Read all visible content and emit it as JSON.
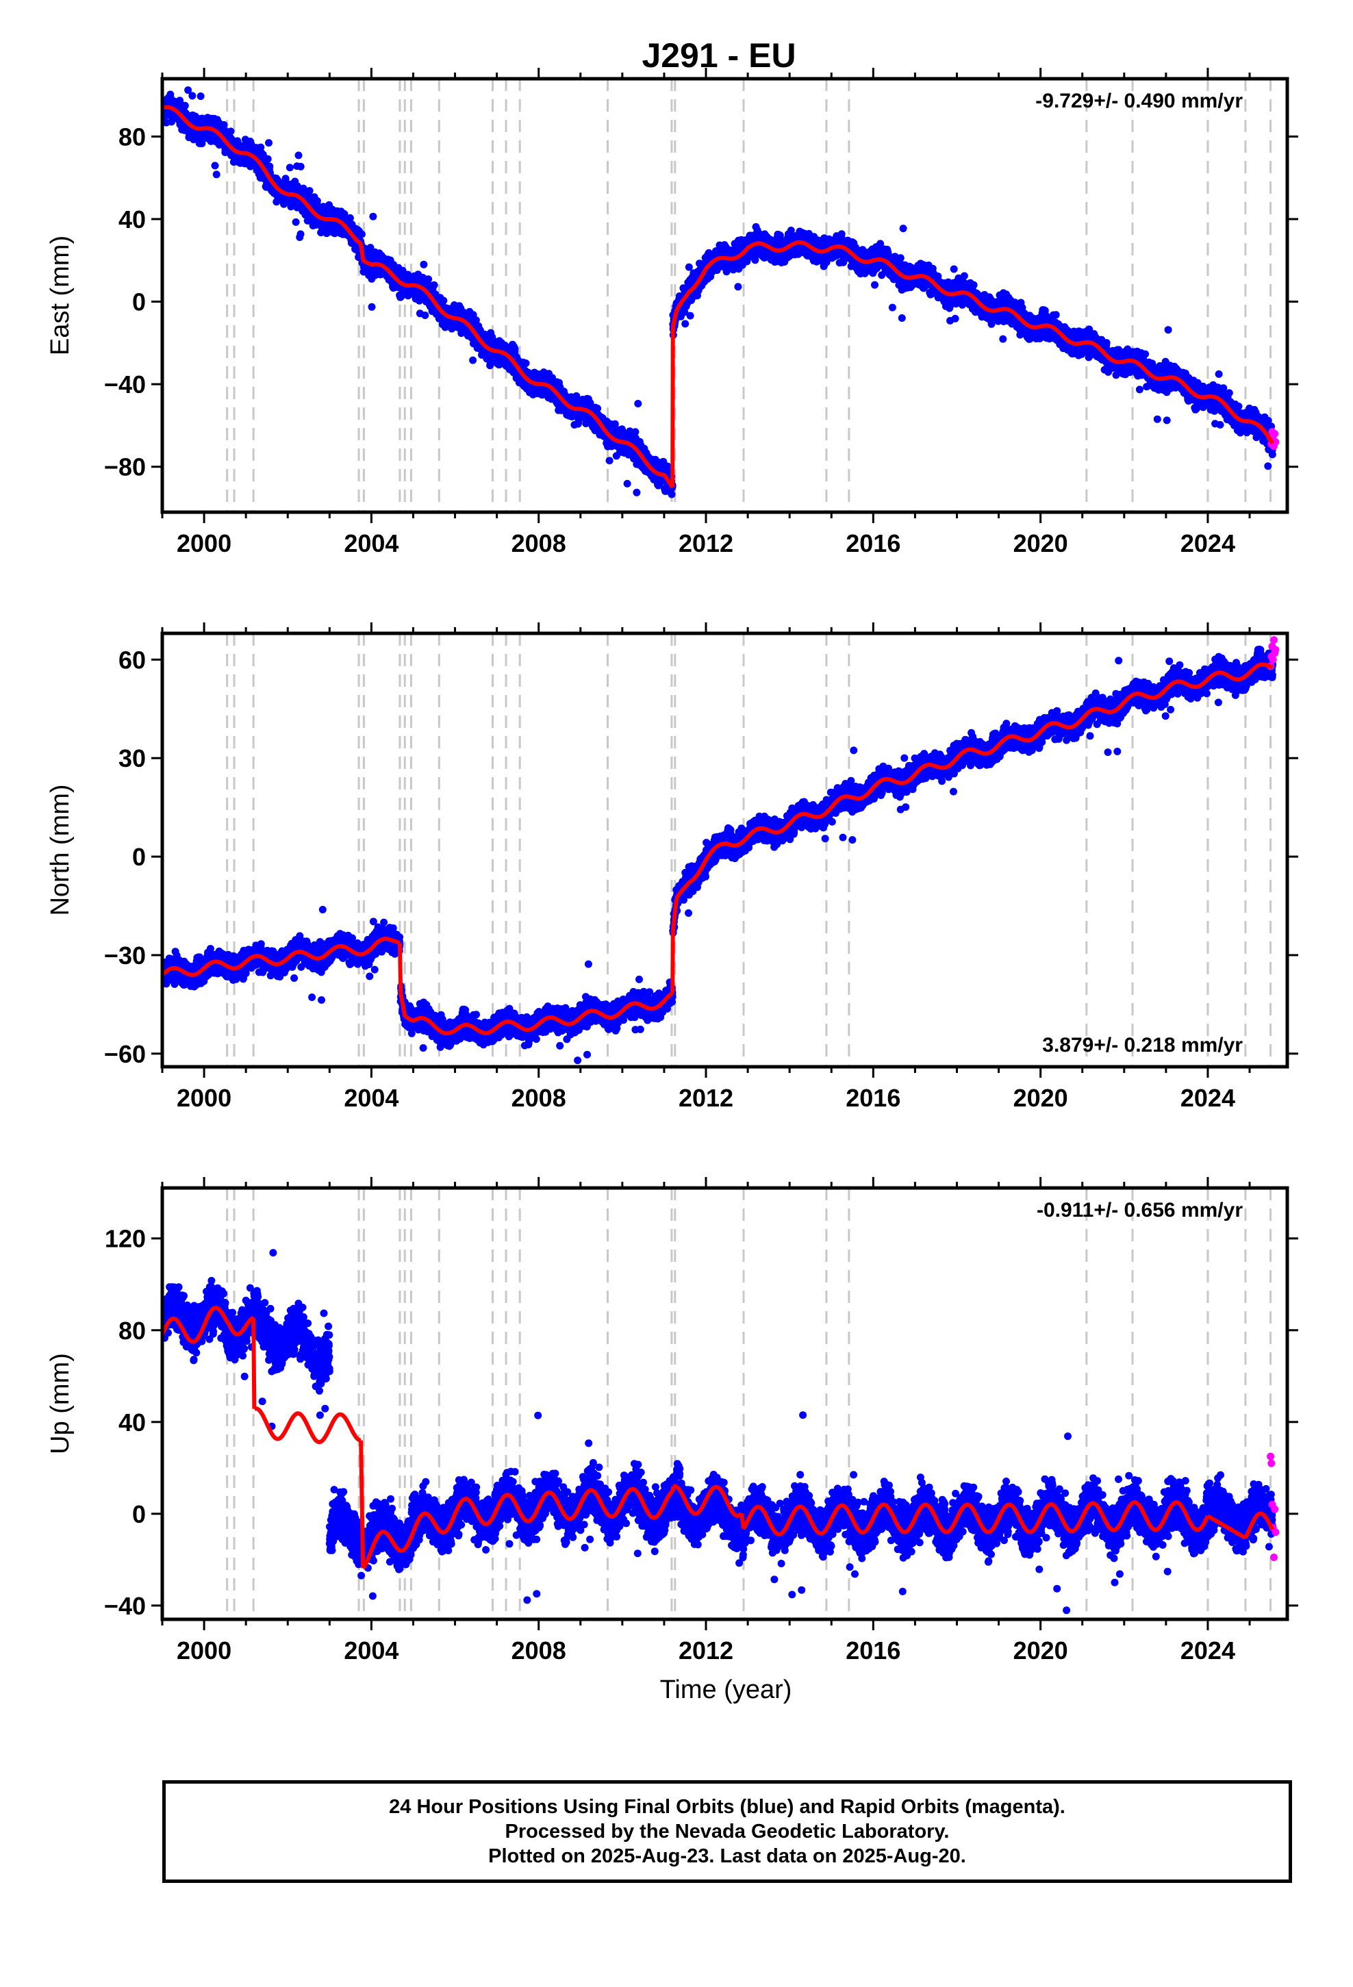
{
  "title": "J291 - EU",
  "xlabel": "Time (year)",
  "x_ticks": [
    2000,
    2004,
    2008,
    2012,
    2016,
    2020,
    2024
  ],
  "x_range": [
    1999.0,
    2025.9
  ],
  "colors": {
    "final_orbits": "#0000ff",
    "rapid_orbits": "#ff00ff",
    "model": "#ff0000",
    "events": "#c8c8c8",
    "frame": "#000000"
  },
  "chart_data": [
    {
      "type": "scatter",
      "component": "east",
      "ylabel": "East (mm)",
      "ylim": [
        -102,
        108
      ],
      "y_ticks": [
        -80,
        -40,
        0,
        40,
        80
      ],
      "rate_label": "-9.729+/- 0.490 mm/yr",
      "rate_position": "top-right",
      "event_lines": [
        2000.55,
        2000.72,
        2001.18,
        2003.7,
        2003.82,
        2004.68,
        2004.8,
        2004.95,
        2005.62,
        2006.9,
        2007.22,
        2007.55,
        2009.65,
        2011.18,
        2011.26,
        2012.9,
        2014.88,
        2015.42,
        2021.1,
        2022.2,
        2024.0,
        2024.9,
        2025.5
      ],
      "series": [
        {
          "name": "Final Orbits",
          "segments": [
            {
              "x": [
                1999.0,
                2000.0,
                2001.0,
                2002.0,
                2003.0,
                2003.75,
                2003.8,
                2004.0,
                2005.0,
                2006.0,
                2007.0,
                2008.0,
                2009.0,
                2010.0,
                2011.0,
                2011.2
              ],
              "y": [
                94,
                84,
                72,
                52,
                40,
                30,
                22,
                18,
                8,
                -8,
                -24,
                -40,
                -52,
                -68,
                -84,
                -92
              ]
            },
            {
              "x": [
                2011.21,
                2011.3,
                2011.6,
                2012.0,
                2012.5,
                2013.0,
                2014.0,
                2015.0,
                2016.0,
                2017.0,
                2018.0,
                2019.0,
                2020.0,
                2021.0,
                2022.0,
                2023.0,
                2024.0,
                2025.0,
                2025.55
              ],
              "y": [
                -14,
                -6,
                6,
                16,
                21,
                26,
                27,
                26,
                20,
                12,
                4,
                -4,
                -12,
                -20,
                -29,
                -37,
                -46,
                -58,
                -68
              ]
            }
          ],
          "scatter_sd": 4
        },
        {
          "name": "Rapid Orbits",
          "x": [
            2025.5,
            2025.52,
            2025.54,
            2025.56,
            2025.58,
            2025.6,
            2025.62
          ],
          "y": [
            -66,
            -69,
            -63,
            -67,
            -70,
            -64,
            -68
          ]
        }
      ],
      "model_segments": [
        {
          "x": [
            1999.0,
            2000.0,
            2001.0,
            2002.0,
            2003.0,
            2003.75,
            2003.8,
            2004.0,
            2005.0,
            2006.0,
            2007.0,
            2008.0,
            2009.0,
            2010.0,
            2011.0,
            2011.2
          ],
          "y": [
            94,
            84,
            72,
            52,
            40,
            30,
            22,
            18,
            8,
            -8,
            -24,
            -40,
            -52,
            -68,
            -84,
            -92
          ]
        },
        {
          "x": [
            2011.21,
            2011.3,
            2011.6,
            2012.0,
            2012.5,
            2013.0,
            2014.0,
            2015.0,
            2016.0,
            2017.0,
            2018.0,
            2019.0,
            2020.0,
            2021.0,
            2022.0,
            2023.0,
            2024.0,
            2025.0,
            2025.55
          ],
          "y": [
            -14,
            -6,
            6,
            16,
            21,
            26,
            27,
            26,
            20,
            12,
            4,
            -4,
            -12,
            -20,
            -29,
            -37,
            -46,
            -58,
            -68
          ]
        }
      ],
      "seasonal_amplitude": 2
    },
    {
      "type": "scatter",
      "component": "north",
      "ylabel": "North (mm)",
      "ylim": [
        -64,
        68
      ],
      "y_ticks": [
        -60,
        -30,
        0,
        30,
        60
      ],
      "rate_label": "3.879+/- 0.218 mm/yr",
      "rate_position": "bottom-right",
      "event_lines": [
        2000.55,
        2000.72,
        2001.18,
        2003.7,
        2003.82,
        2004.68,
        2004.8,
        2004.95,
        2005.62,
        2006.9,
        2007.22,
        2007.55,
        2009.65,
        2011.18,
        2011.26,
        2012.9,
        2014.88,
        2015.42,
        2021.1,
        2022.2,
        2024.0,
        2024.9,
        2025.5
      ],
      "series": [
        {
          "name": "Final Orbits",
          "segments": [
            {
              "x": [
                1999.0,
                2000.0,
                2001.0,
                2002.0,
                2003.0,
                2004.0,
                2004.6,
                2004.68
              ],
              "y": [
                -36,
                -34,
                -32,
                -31,
                -29,
                -28,
                -25,
                -25
              ]
            },
            {
              "x": [
                2004.7,
                2004.8,
                2005.0,
                2006.0,
                2007.0,
                2008.0,
                2009.0,
                2010.0,
                2011.0,
                2011.2
              ],
              "y": [
                -40,
                -47,
                -50,
                -53,
                -52,
                -51,
                -49,
                -47,
                -44,
                -43
              ]
            },
            {
              "x": [
                2011.21,
                2011.3,
                2011.6,
                2012.0,
                2012.5,
                2013.0,
                2014.0,
                2015.0,
                2016.0,
                2017.0,
                2018.0,
                2019.0,
                2020.0,
                2021.0,
                2022.0,
                2023.0,
                2024.0,
                2025.0,
                2025.55
              ],
              "y": [
                -24,
                -14,
                -7,
                -1,
                4,
                6,
                10,
                15,
                21,
                25,
                30,
                34,
                38,
                42,
                47,
                51,
                54,
                56,
                58
              ]
            }
          ],
          "scatter_sd": 2.5
        },
        {
          "name": "Rapid Orbits",
          "x": [
            2025.5,
            2025.52,
            2025.54,
            2025.56,
            2025.58,
            2025.6,
            2025.62
          ],
          "y": [
            58,
            61,
            64,
            60,
            66,
            62,
            63
          ]
        }
      ],
      "model_segments": [
        {
          "x": [
            1999.0,
            2000.0,
            2001.0,
            2002.0,
            2003.0,
            2004.0,
            2004.6,
            2004.68
          ],
          "y": [
            -36,
            -34,
            -32,
            -31,
            -29,
            -28,
            -25,
            -25
          ]
        },
        {
          "x": [
            2004.7,
            2004.8,
            2005.0,
            2006.0,
            2007.0,
            2008.0,
            2009.0,
            2010.0,
            2011.0,
            2011.2
          ],
          "y": [
            -40,
            -47,
            -50,
            -53,
            -52,
            -51,
            -49,
            -47,
            -44,
            -43
          ]
        },
        {
          "x": [
            2011.21,
            2011.3,
            2011.6,
            2012.0,
            2012.5,
            2013.0,
            2014.0,
            2015.0,
            2016.0,
            2017.0,
            2018.0,
            2019.0,
            2020.0,
            2021.0,
            2022.0,
            2023.0,
            2024.0,
            2025.0,
            2025.55
          ],
          "y": [
            -24,
            -14,
            -7,
            -1,
            4,
            6,
            10,
            15,
            21,
            25,
            30,
            34,
            38,
            42,
            47,
            51,
            54,
            56,
            58
          ]
        }
      ],
      "seasonal_amplitude": 1.5
    },
    {
      "type": "scatter",
      "component": "up",
      "ylabel": "Up (mm)",
      "ylim": [
        -46,
        142
      ],
      "y_ticks": [
        -40,
        0,
        40,
        80,
        120
      ],
      "rate_label": "-0.911+/- 0.656 mm/yr",
      "rate_position": "top-right",
      "event_lines": [
        2000.55,
        2000.72,
        2001.18,
        2003.7,
        2003.82,
        2004.68,
        2004.8,
        2004.95,
        2005.62,
        2006.9,
        2007.22,
        2007.55,
        2009.65,
        2011.18,
        2011.26,
        2012.9,
        2014.88,
        2015.42,
        2021.1,
        2022.2,
        2024.0,
        2024.9,
        2025.5
      ],
      "series": [
        {
          "name": "Final Orbits",
          "segments": [
            {
              "x": [
                1999.0,
                2000.0,
                2001.0,
                2002.0,
                2003.0
              ],
              "y": [
                84,
                86,
                82,
                76,
                70
              ]
            },
            {
              "x": [
                2003.0,
                2003.4,
                2003.8,
                2004.0,
                2005.0,
                2006.0,
                2007.0,
                2008.0,
                2009.0,
                2010.0,
                2011.0,
                2012.0,
                2013.0,
                2016.0,
                2020.0,
                2024.0,
                2025.55
              ],
              "y": [
                -8,
                -6,
                -10,
                -12,
                -6,
                0,
                2,
                3,
                4,
                4,
                3,
                2,
                -3,
                -3,
                -2,
                -1,
                -2
              ]
            }
          ],
          "scatter_sd": 7
        },
        {
          "name": "Rapid Orbits",
          "x": [
            2025.5,
            2025.52,
            2025.54,
            2025.56,
            2025.58,
            2025.6,
            2025.62
          ],
          "y": [
            25,
            22,
            4,
            -6,
            -19,
            2,
            -8
          ]
        }
      ],
      "model_segments": [
        {
          "x": [
            1999.0,
            2000.0,
            2000.6,
            2001.18
          ],
          "y": [
            78,
            82,
            86,
            80
          ]
        },
        {
          "x": [
            2001.2,
            2002.0,
            2003.0,
            2003.75
          ],
          "y": [
            40,
            38,
            37,
            38
          ]
        },
        {
          "x": [
            2003.8,
            2004.0,
            2005.0,
            2006.0,
            2007.0,
            2008.0,
            2009.0,
            2010.0,
            2011.0,
            2011.2
          ],
          "y": [
            -18,
            -16,
            -8,
            0,
            2,
            3,
            4,
            5,
            4,
            4
          ]
        },
        {
          "x": [
            2011.22,
            2012.0,
            2012.85
          ],
          "y": [
            6,
            6,
            5
          ]
        },
        {
          "x": [
            2012.9,
            2014.0,
            2016.0,
            2018.0,
            2020.0,
            2022.0,
            2024.0
          ],
          "y": [
            -3,
            -3,
            -2,
            -2,
            -2,
            -1,
            -1
          ]
        },
        {
          "x": [
            2024.9,
            2025.55
          ],
          "y": [
            -7,
            -5
          ]
        }
      ],
      "seasonal_amplitude": 6
    }
  ],
  "footer": {
    "line1": "24 Hour Positions Using Final Orbits (blue) and Rapid Orbits (magenta).",
    "line2": "Processed by the Nevada Geodetic Laboratory.",
    "line3": "Plotted on 2025-Aug-23. Last data on 2025-Aug-20."
  }
}
